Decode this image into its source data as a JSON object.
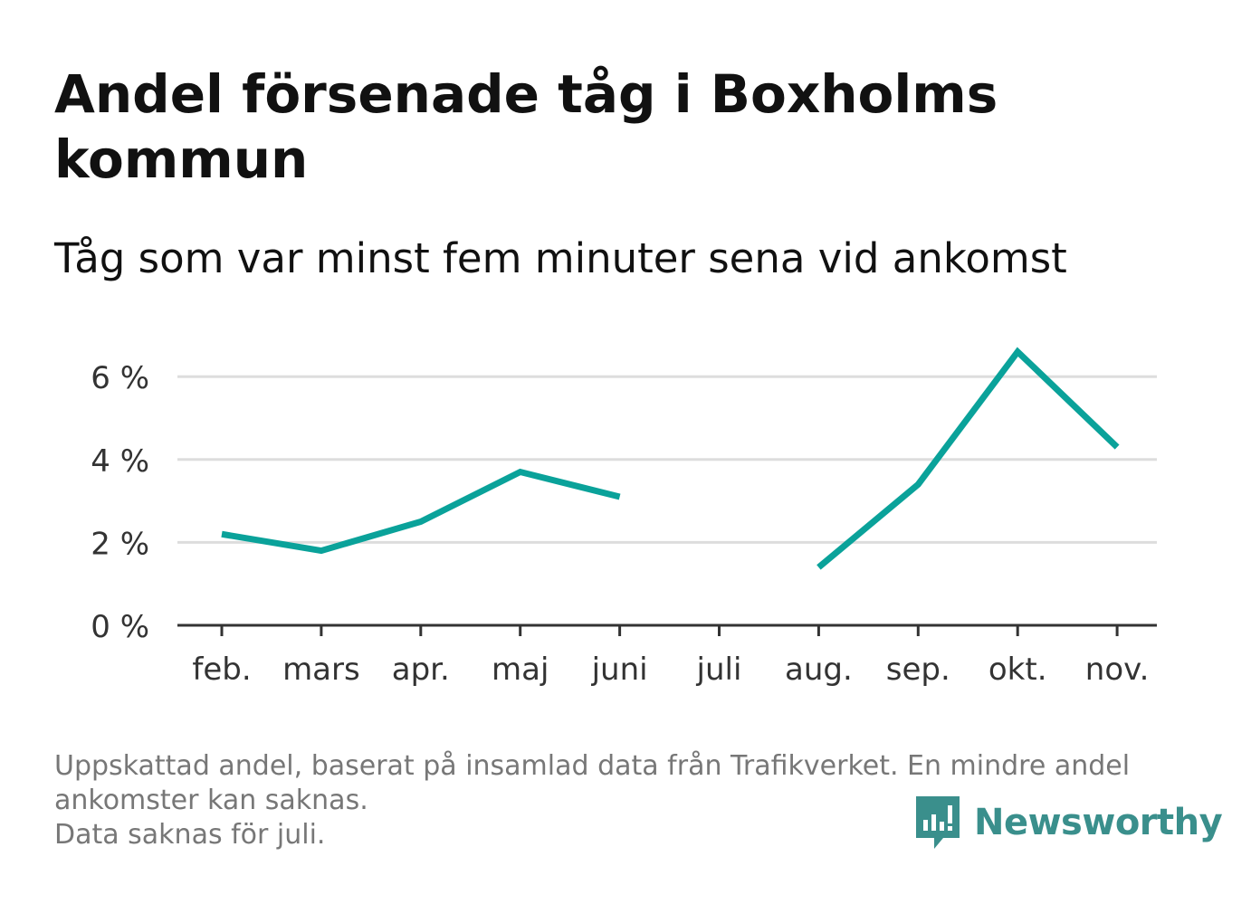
{
  "title": "Andel försenade tåg i Boxholms kommun",
  "subtitle": "Tåg som var minst fem minuter sena vid ankomst",
  "footnote": {
    "line1": "Uppskattad andel, baserat på insamlad data från Trafikverket. En mindre andel",
    "line2": "ankomster kan saknas.",
    "line3": "Data saknas för juli."
  },
  "brand": {
    "name": "Newsworthy",
    "icon": "newsworthy-logo-icon",
    "color": "#3a8f8c"
  },
  "chart_data": {
    "type": "line",
    "title": "Andel försenade tåg i Boxholms kommun",
    "subtitle": "Tåg som var minst fem minuter sena vid ankomst",
    "xlabel": "",
    "ylabel": "",
    "categories": [
      "feb.",
      "mars",
      "apr.",
      "maj",
      "juni",
      "juli",
      "aug.",
      "sep.",
      "okt.",
      "nov."
    ],
    "series": [
      {
        "values": [
          2.2,
          1.8,
          2.5,
          3.7,
          3.1,
          null,
          1.4,
          3.4,
          6.6,
          4.3
        ],
        "color": "#0aa29a"
      }
    ],
    "ylim": [
      0,
      7
    ],
    "yticks": [
      0,
      2,
      4,
      6
    ],
    "ytick_labels": [
      "0 %",
      "2 %",
      "4 %",
      "6 %"
    ],
    "grid": true,
    "legend": "none"
  }
}
